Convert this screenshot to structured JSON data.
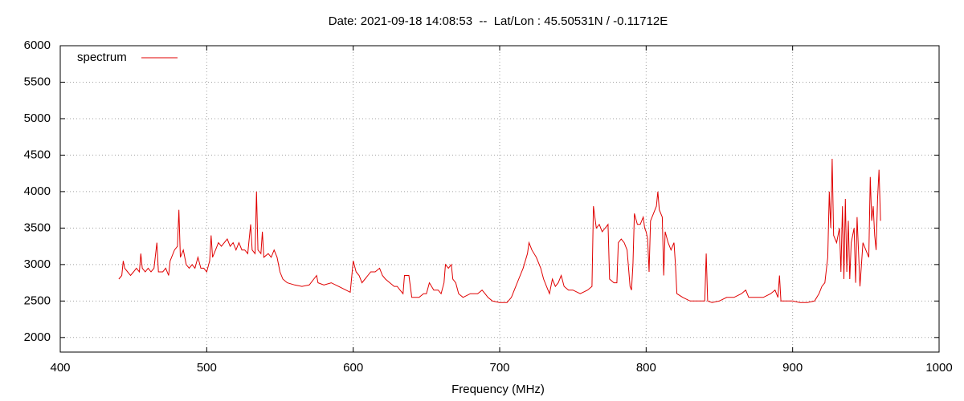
{
  "chart_data": {
    "type": "line",
    "title": "Date: 2021-09-18 14:08:53  --  Lat/Lon : 45.50531N / -0.11712E",
    "xlabel": "Frequency (MHz)",
    "xlim": [
      400,
      1000
    ],
    "xticks": [
      400,
      500,
      600,
      700,
      800,
      900,
      1000
    ],
    "ylim": [
      1800,
      6000
    ],
    "yticks": [
      2000,
      2500,
      3000,
      3500,
      4000,
      4500,
      5000,
      5500,
      6000
    ],
    "grid": true,
    "legend": "upper left",
    "series": [
      {
        "name": "spectrum",
        "color": "#e00000",
        "x": [
          440,
          442,
          443,
          444,
          446,
          448,
          450,
          452,
          454,
          455,
          456,
          458,
          460,
          462,
          464,
          466,
          467,
          470,
          472,
          474,
          475,
          476,
          478,
          480,
          481,
          482,
          484,
          486,
          488,
          490,
          492,
          494,
          496,
          498,
          500,
          502,
          503,
          504,
          506,
          508,
          510,
          512,
          514,
          516,
          518,
          520,
          522,
          524,
          526,
          528,
          530,
          531,
          533,
          534,
          535,
          537,
          538,
          539,
          542,
          544,
          546,
          548,
          550,
          552,
          555,
          560,
          565,
          570,
          575,
          576,
          580,
          585,
          590,
          595,
          598,
          600,
          602,
          604,
          606,
          608,
          610,
          612,
          615,
          618,
          620,
          622,
          625,
          628,
          630,
          632,
          634,
          635,
          638,
          640,
          645,
          648,
          650,
          652,
          655,
          658,
          660,
          662,
          663,
          665,
          667,
          668,
          670,
          672,
          675,
          680,
          685,
          688,
          690,
          692,
          695,
          700,
          705,
          708,
          710,
          713,
          716,
          719,
          720,
          722,
          725,
          728,
          730,
          732,
          734,
          736,
          738,
          740,
          742,
          744,
          747,
          750,
          755,
          760,
          763,
          764,
          766,
          768,
          770,
          772,
          774,
          775,
          778,
          780,
          781,
          783,
          785,
          787,
          789,
          790,
          791,
          792,
          794,
          796,
          798,
          799,
          800,
          801,
          802,
          803,
          805,
          807,
          808,
          809,
          811,
          812,
          813,
          815,
          817,
          819,
          820,
          821,
          825,
          830,
          835,
          840,
          841,
          842,
          845,
          850,
          855,
          860,
          865,
          868,
          870,
          875,
          880,
          885,
          888,
          890,
          891,
          892,
          895,
          900,
          905,
          910,
          915,
          918,
          920,
          922,
          924,
          925,
          926,
          927,
          928,
          930,
          932,
          933,
          934,
          935,
          936,
          937,
          938,
          939,
          940,
          942,
          943,
          944,
          946,
          948,
          950,
          952,
          953,
          954,
          955,
          956,
          957,
          958,
          959,
          960
        ],
        "values": [
          2800,
          2850,
          3050,
          2950,
          2900,
          2850,
          2900,
          2950,
          2900,
          3150,
          2950,
          2900,
          2950,
          2900,
          2950,
          3300,
          2900,
          2900,
          2950,
          2850,
          3050,
          3100,
          3200,
          3250,
          3750,
          3100,
          3200,
          3000,
          2950,
          3000,
          2950,
          3100,
          2950,
          2950,
          2900,
          3050,
          3400,
          3100,
          3200,
          3300,
          3250,
          3300,
          3350,
          3250,
          3300,
          3200,
          3300,
          3200,
          3200,
          3150,
          3550,
          3200,
          3150,
          4000,
          3200,
          3150,
          3450,
          3100,
          3150,
          3100,
          3200,
          3100,
          2900,
          2800,
          2750,
          2720,
          2700,
          2720,
          2850,
          2750,
          2720,
          2750,
          2700,
          2650,
          2620,
          3050,
          2900,
          2850,
          2750,
          2800,
          2850,
          2900,
          2900,
          2950,
          2850,
          2800,
          2750,
          2700,
          2700,
          2650,
          2600,
          2850,
          2850,
          2550,
          2550,
          2600,
          2600,
          2750,
          2650,
          2650,
          2600,
          2750,
          3000,
          2950,
          3000,
          2800,
          2750,
          2600,
          2550,
          2600,
          2600,
          2650,
          2600,
          2550,
          2500,
          2480,
          2480,
          2550,
          2650,
          2800,
          2950,
          3150,
          3300,
          3200,
          3100,
          2950,
          2800,
          2700,
          2600,
          2800,
          2700,
          2750,
          2850,
          2700,
          2650,
          2650,
          2600,
          2650,
          2700,
          3800,
          3500,
          3550,
          3450,
          3500,
          3550,
          2800,
          2750,
          2750,
          3300,
          3350,
          3300,
          3200,
          2700,
          2650,
          3000,
          3700,
          3550,
          3550,
          3650,
          3500,
          3450,
          3350,
          2900,
          3600,
          3700,
          3800,
          4000,
          3750,
          3650,
          2850,
          3450,
          3300,
          3200,
          3300,
          3000,
          2600,
          2550,
          2500,
          2500,
          2500,
          3150,
          2500,
          2480,
          2500,
          2550,
          2550,
          2600,
          2650,
          2550,
          2550,
          2550,
          2600,
          2650,
          2550,
          2850,
          2500,
          2500,
          2500,
          2480,
          2480,
          2500,
          2600,
          2700,
          2750,
          3100,
          4000,
          3500,
          4450,
          3400,
          3300,
          3500,
          2900,
          3800,
          2800,
          3900,
          2900,
          3600,
          2800,
          3300,
          3500,
          2750,
          3650,
          2700,
          3300,
          3200,
          3100,
          4200,
          3600,
          3800,
          3400,
          3200,
          3900,
          4300,
          3600
        ]
      }
    ]
  }
}
